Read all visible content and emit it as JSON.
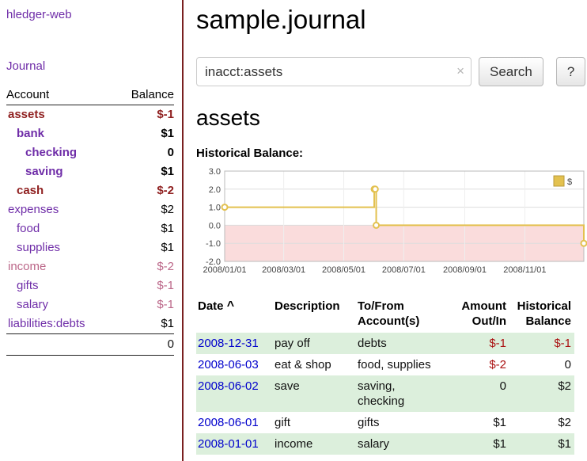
{
  "palette": {
    "purple": "#6f2da8",
    "dark_red": "#8f1f1f",
    "rose": "#bb6688",
    "link_blue": "#0000cc",
    "neg_red": "#aa1111",
    "row_green": "#dcefdc",
    "chart_gold": "#e3c14f",
    "sidebar_border": "#7a2020",
    "black": "#000000"
  },
  "sidebar": {
    "app_title": "hledger-web",
    "journal_link": "Journal",
    "header": {
      "account": "Account",
      "balance": "Balance"
    },
    "accounts": [
      {
        "name": "assets",
        "balance": "$-1",
        "indent": 0,
        "bold": true,
        "name_color": "dark_red",
        "balance_color": "dark_red"
      },
      {
        "name": "bank",
        "balance": "$1",
        "indent": 1,
        "bold": true,
        "name_color": "purple",
        "balance_color": "black"
      },
      {
        "name": "checking",
        "balance": "0",
        "indent": 2,
        "bold": true,
        "name_color": "purple",
        "balance_color": "black"
      },
      {
        "name": "saving",
        "balance": "$1",
        "indent": 2,
        "bold": true,
        "name_color": "purple",
        "balance_color": "black"
      },
      {
        "name": "cash",
        "balance": "$-2",
        "indent": 1,
        "bold": true,
        "name_color": "dark_red",
        "balance_color": "dark_red"
      },
      {
        "name": "expenses",
        "balance": "$2",
        "indent": 0,
        "bold": false,
        "name_color": "purple",
        "balance_color": "black"
      },
      {
        "name": "food",
        "balance": "$1",
        "indent": 1,
        "bold": false,
        "name_color": "purple",
        "balance_color": "black"
      },
      {
        "name": "supplies",
        "balance": "$1",
        "indent": 1,
        "bold": false,
        "name_color": "purple",
        "balance_color": "black"
      },
      {
        "name": "income",
        "balance": "$-2",
        "indent": 0,
        "bold": false,
        "name_color": "rose",
        "balance_color": "rose"
      },
      {
        "name": "gifts",
        "balance": "$-1",
        "indent": 1,
        "bold": false,
        "name_color": "purple",
        "balance_color": "rose"
      },
      {
        "name": "salary",
        "balance": "$-1",
        "indent": 1,
        "bold": false,
        "name_color": "purple",
        "balance_color": "rose"
      },
      {
        "name": "liabilities:debts",
        "balance": "$1",
        "indent": 0,
        "bold": false,
        "name_color": "purple",
        "balance_color": "black"
      }
    ],
    "total": "0"
  },
  "main": {
    "title": "sample.journal",
    "search": {
      "value": "inacct:assets",
      "clear": "×",
      "button": "Search",
      "help": "?"
    },
    "account_heading": "assets",
    "chart_title": "Historical Balance:"
  },
  "chart_data": {
    "type": "line",
    "title": "Historical Balance",
    "legend": [
      "$"
    ],
    "legend_position": "top-right",
    "grid": true,
    "ylim": [
      -2,
      3
    ],
    "yticks": [
      3,
      2,
      1,
      0,
      -1,
      -2
    ],
    "ytick_labels": [
      "3.0",
      "2.0",
      "1.0",
      "0.0",
      "-1.0",
      "-2.0"
    ],
    "x_range": [
      "2008-01-01",
      "2008-12-31"
    ],
    "xticks": [
      "2008/01/01",
      "2008/03/01",
      "2008/05/01",
      "2008/07/01",
      "2008/09/01",
      "2008/11/01"
    ],
    "negative_region_fill": "#fadcdc",
    "series": [
      {
        "name": "$",
        "color": "#e3c14f",
        "step": true,
        "points": [
          {
            "x": "2008-01-01",
            "y": 1
          },
          {
            "x": "2008-06-01",
            "y": 2
          },
          {
            "x": "2008-06-02",
            "y": 2
          },
          {
            "x": "2008-06-03",
            "y": 0
          },
          {
            "x": "2008-12-31",
            "y": -1
          }
        ]
      }
    ]
  },
  "register": {
    "headers": {
      "date": "Date",
      "sort_icon": "^",
      "description": "Description",
      "accounts": "To/From Account(s)",
      "amount": "Amount Out/In",
      "balance": "Historical Balance"
    },
    "rows": [
      {
        "date": "2008-12-31",
        "description": "pay off",
        "accounts": [
          "debts"
        ],
        "amount": "$-1",
        "balance": "$-1",
        "amount_negative": true,
        "balance_negative": true,
        "shaded": true
      },
      {
        "date": "2008-06-03",
        "description": "eat & shop",
        "accounts": [
          "food, supplies"
        ],
        "amount": "$-2",
        "balance": "0",
        "amount_negative": true,
        "balance_negative": false,
        "shaded": false
      },
      {
        "date": "2008-06-02",
        "description": "save",
        "accounts": [
          "saving,",
          "checking"
        ],
        "amount": "0",
        "balance": "$2",
        "amount_negative": false,
        "balance_negative": false,
        "shaded": true
      },
      {
        "date": "2008-06-01",
        "description": "gift",
        "accounts": [
          "gifts"
        ],
        "amount": "$1",
        "balance": "$2",
        "amount_negative": false,
        "balance_negative": false,
        "shaded": false
      },
      {
        "date": "2008-01-01",
        "description": "income",
        "accounts": [
          "salary"
        ],
        "amount": "$1",
        "balance": "$1",
        "amount_negative": false,
        "balance_negative": false,
        "shaded": true
      }
    ]
  }
}
